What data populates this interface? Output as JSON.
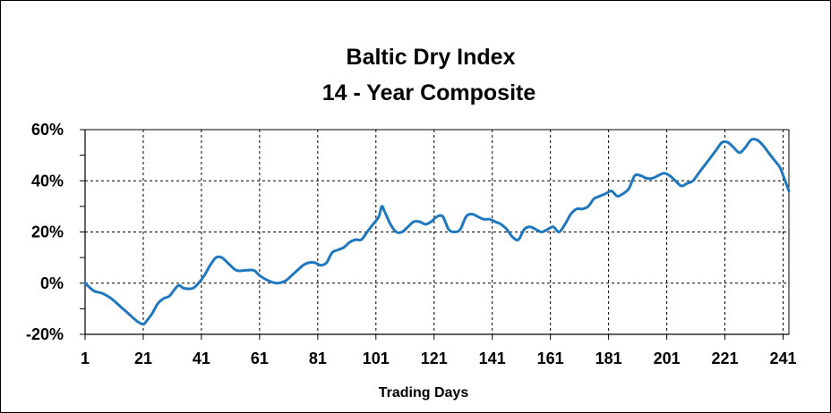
{
  "chart_data": {
    "type": "line",
    "title": "Baltic  Dry  Index",
    "subtitle": "14 - Year  Composite",
    "xlabel": "Trading Days",
    "ylabel": "",
    "xlim": [
      1,
      243
    ],
    "ylim": [
      -20,
      60
    ],
    "x_ticks": [
      "1",
      "21",
      "41",
      "61",
      "81",
      "101",
      "121",
      "141",
      "161",
      "181",
      "201",
      "221",
      "241"
    ],
    "y_ticks": [
      "-20%",
      "0%",
      "20%",
      "40%",
      "60%"
    ],
    "grid": true,
    "legend": "none",
    "line_color": "#1F77C0",
    "series": [
      {
        "x": [
          1,
          4,
          7,
          10,
          13,
          16,
          19,
          21,
          22,
          24,
          26,
          28,
          30,
          33,
          35,
          38,
          40,
          42,
          44,
          46,
          48,
          50,
          53,
          56,
          59,
          61,
          64,
          67,
          70,
          72,
          74,
          76,
          78,
          80,
          82,
          84,
          86,
          88,
          90,
          92,
          94,
          96,
          98,
          100,
          102,
          103,
          104,
          106,
          108,
          110,
          112,
          114,
          116,
          118,
          120,
          122,
          124,
          126,
          128,
          130,
          132,
          134,
          136,
          138,
          140,
          142,
          144,
          146,
          148,
          150,
          152,
          154,
          156,
          158,
          160,
          162,
          164,
          166,
          167,
          168,
          170,
          172,
          174,
          176,
          178,
          180,
          182,
          184,
          186,
          188,
          190,
          192,
          194,
          196,
          198,
          200,
          202,
          204,
          206,
          208,
          210,
          212,
          214,
          216,
          218,
          220,
          222,
          224,
          226,
          228,
          230,
          232,
          234,
          236,
          238,
          240,
          242,
          243
        ],
        "values": [
          0,
          -3,
          -4,
          -6,
          -9,
          -12,
          -15,
          -16,
          -15,
          -12,
          -8,
          -6,
          -5,
          -1,
          -2,
          -2,
          0,
          3,
          7,
          10,
          10,
          8,
          5,
          5,
          5,
          3,
          1,
          0,
          1,
          3,
          5,
          7,
          8,
          8,
          7,
          8,
          12,
          13,
          14,
          16,
          17,
          17,
          20,
          23,
          26,
          30,
          28,
          23,
          20,
          20,
          22,
          24,
          24,
          23,
          24,
          26,
          26,
          21,
          20,
          21,
          26,
          27,
          26,
          25,
          25,
          24,
          23,
          21,
          18,
          17,
          21,
          22,
          21,
          20,
          21,
          22,
          20,
          23,
          25,
          27,
          29,
          29,
          30,
          33,
          34,
          35,
          36,
          34,
          35,
          37,
          42,
          42,
          41,
          41,
          42,
          43,
          42,
          40,
          38,
          39,
          40,
          43,
          46,
          49,
          52,
          55,
          55,
          53,
          51,
          53,
          56,
          56,
          54,
          51,
          48,
          45,
          39,
          36
        ]
      }
    ]
  }
}
